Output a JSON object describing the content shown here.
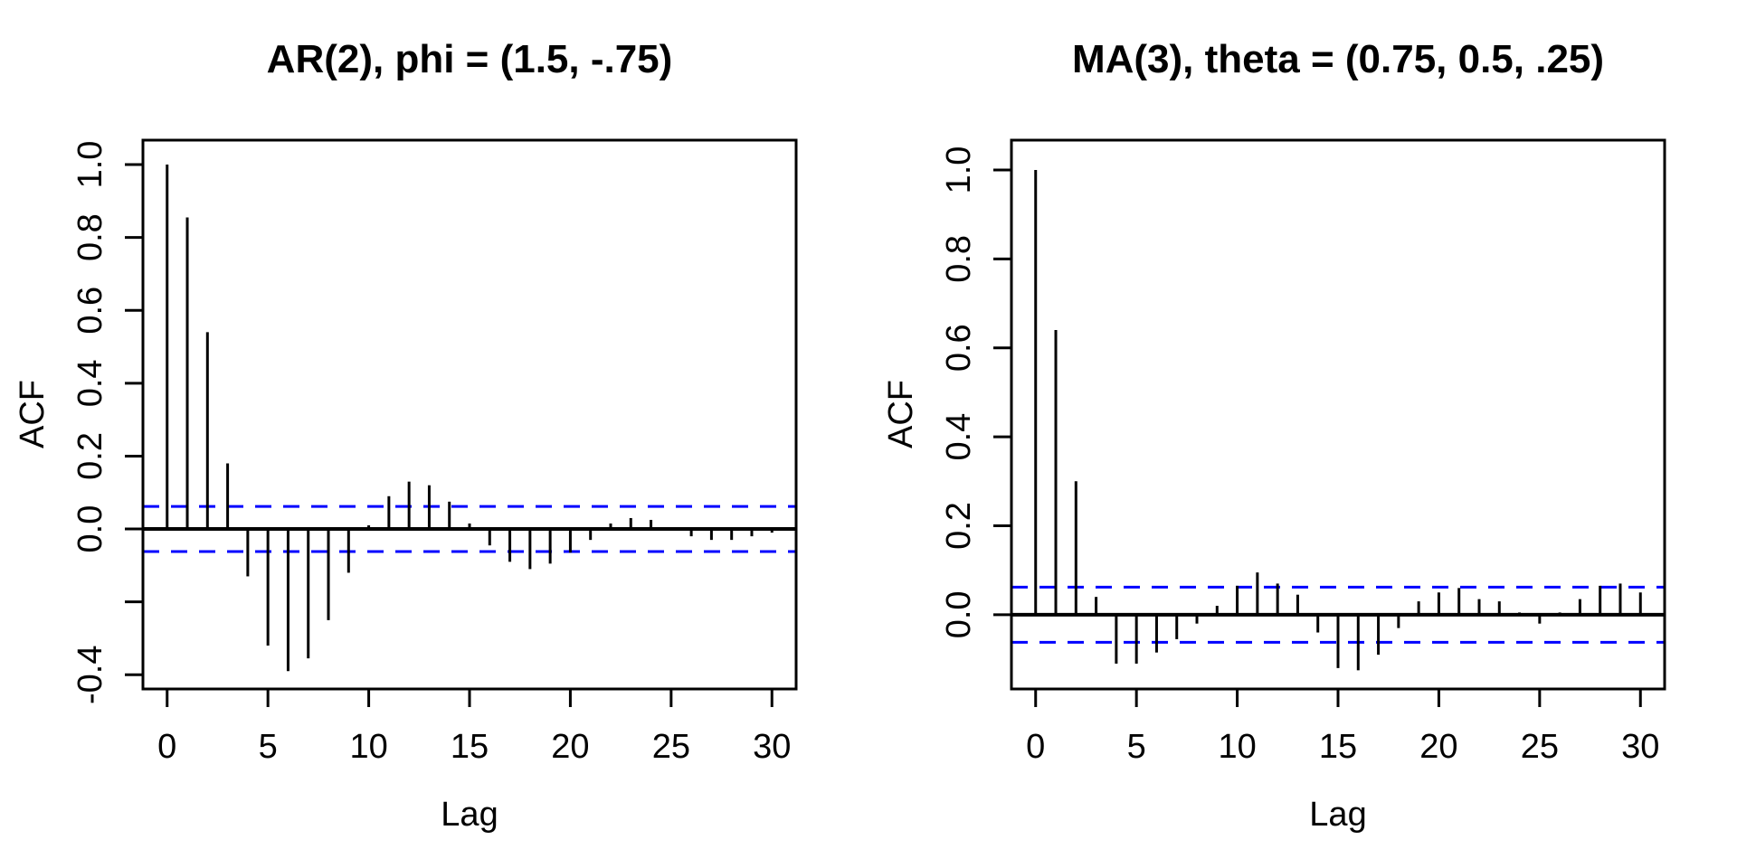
{
  "figure": {
    "background": "#ffffff",
    "bar_color": "#000000",
    "band_color": "#0000ff"
  },
  "chart_data": [
    {
      "type": "bar",
      "title": "AR(2), phi = (1.5, -.75)",
      "xlabel": "Lag",
      "ylabel": "ACF",
      "x": [
        0,
        1,
        2,
        3,
        4,
        5,
        6,
        7,
        8,
        9,
        10,
        11,
        12,
        13,
        14,
        15,
        16,
        17,
        18,
        19,
        20,
        21,
        22,
        23,
        24,
        25,
        26,
        27,
        28,
        29,
        30
      ],
      "values": [
        1.0,
        0.855,
        0.54,
        0.18,
        -0.13,
        -0.32,
        -0.39,
        -0.355,
        -0.25,
        -0.12,
        0.01,
        0.09,
        0.13,
        0.12,
        0.075,
        0.015,
        -0.045,
        -0.09,
        -0.11,
        -0.095,
        -0.065,
        -0.03,
        0.015,
        0.03,
        0.025,
        0.005,
        -0.02,
        -0.03,
        -0.03,
        -0.02,
        -0.01
      ],
      "confidence_band": 0.062,
      "band_style": "dashed",
      "band_color": "#0000ff",
      "bar_color": "#000000",
      "xlim": [
        -1.2,
        31.2
      ],
      "ylim": [
        -0.439,
        1.067
      ],
      "x_ticks": [
        0,
        5,
        10,
        15,
        20,
        25,
        30
      ],
      "x_tick_labels": [
        "0",
        "5",
        "10",
        "15",
        "20",
        "25",
        "30"
      ],
      "y_ticks": [
        1.0,
        0.8,
        0.6,
        0.4,
        0.2,
        0.0,
        -0.2,
        -0.4
      ],
      "y_tick_labels": [
        "1.0",
        "0.8",
        "0.6",
        "0.4",
        "0.2",
        "0.0",
        "",
        "-0.4"
      ],
      "grid": "off",
      "legend": "none"
    },
    {
      "type": "bar",
      "title": "MA(3), theta = (0.75, 0.5, .25)",
      "xlabel": "Lag",
      "ylabel": "ACF",
      "x": [
        0,
        1,
        2,
        3,
        4,
        5,
        6,
        7,
        8,
        9,
        10,
        11,
        12,
        13,
        14,
        15,
        16,
        17,
        18,
        19,
        20,
        21,
        22,
        23,
        24,
        25,
        26,
        27,
        28,
        29,
        30
      ],
      "values": [
        1.0,
        0.64,
        0.3,
        0.04,
        -0.11,
        -0.11,
        -0.085,
        -0.055,
        -0.02,
        0.02,
        0.065,
        0.095,
        0.07,
        0.045,
        -0.04,
        -0.12,
        -0.125,
        -0.09,
        -0.03,
        0.03,
        0.05,
        0.06,
        0.035,
        0.03,
        0.005,
        -0.02,
        0.005,
        0.035,
        0.065,
        0.07,
        0.05
      ],
      "confidence_band": 0.062,
      "band_style": "dashed",
      "band_color": "#0000ff",
      "bar_color": "#000000",
      "xlim": [
        -1.2,
        31.2
      ],
      "ylim": [
        -0.167,
        1.067
      ],
      "x_ticks": [
        0,
        5,
        10,
        15,
        20,
        25,
        30
      ],
      "x_tick_labels": [
        "0",
        "5",
        "10",
        "15",
        "20",
        "25",
        "30"
      ],
      "y_ticks": [
        1.0,
        0.8,
        0.6,
        0.4,
        0.2,
        0.0
      ],
      "y_tick_labels": [
        "1.0",
        "0.8",
        "0.6",
        "0.4",
        "0.2",
        "0.0"
      ],
      "grid": "off",
      "legend": "none"
    }
  ]
}
